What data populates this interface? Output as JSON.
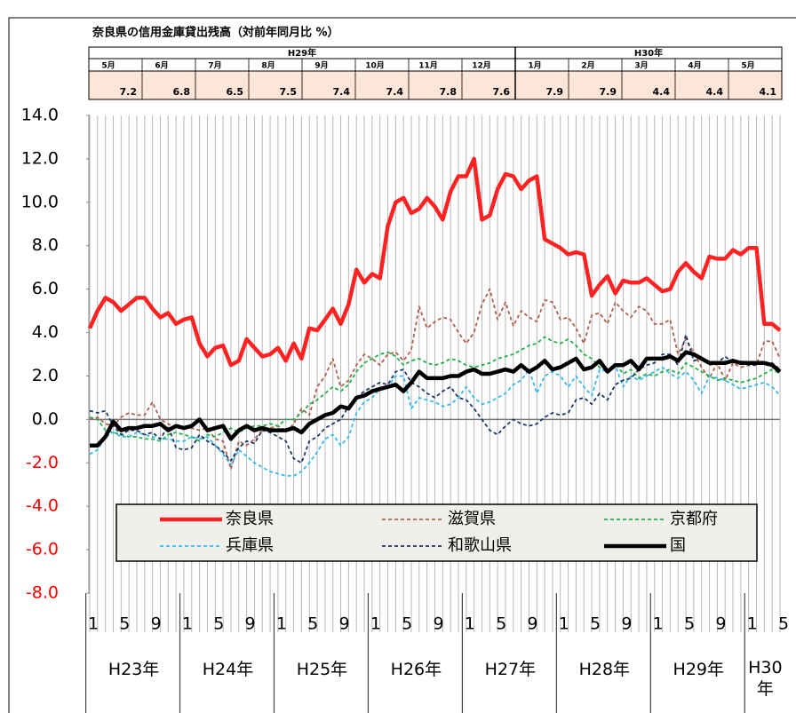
{
  "chart_data": {
    "type": "line",
    "title": "奈良県の信用金庫貸出残高（対前年同月比 %）",
    "categories": [
      "1",
      null,
      null,
      null,
      "5",
      null,
      null,
      null,
      "9",
      null,
      null,
      null,
      "1",
      null,
      null,
      null,
      "5",
      null,
      null,
      null,
      "9",
      null,
      null,
      null,
      "1",
      null,
      null,
      null,
      "5",
      null,
      null,
      null,
      "9",
      null,
      null,
      null,
      "1",
      null,
      null,
      null,
      "5",
      null,
      null,
      null,
      "9",
      null,
      null,
      null,
      "1",
      null,
      null,
      null,
      "5",
      null,
      null,
      null,
      "9",
      null,
      null,
      null,
      "1",
      null,
      null,
      null,
      "5",
      null,
      null,
      null,
      "9",
      null,
      null,
      null,
      "1",
      null,
      null,
      null,
      "5",
      null,
      null,
      null,
      "9",
      null,
      null,
      null,
      "1",
      null,
      null,
      null,
      "5"
    ],
    "year_labels": [
      "H23年",
      "H24年",
      "H25年",
      "H26年",
      "H27年",
      "H28年",
      "H29年",
      "H30年"
    ],
    "ylim": [
      -8,
      14
    ],
    "yticks": [
      {
        "value": 14,
        "label": "14.0"
      },
      {
        "value": 12,
        "label": "12.0"
      },
      {
        "value": 10,
        "label": "10.0"
      },
      {
        "value": 8,
        "label": "8.0"
      },
      {
        "value": 6,
        "label": "6.0"
      },
      {
        "value": 4,
        "label": "4.0"
      },
      {
        "value": 2,
        "label": "2.0"
      },
      {
        "value": 0,
        "label": "0.0"
      },
      {
        "value": -2,
        "label": "-2.0"
      },
      {
        "value": -4,
        "label": "-4.0"
      },
      {
        "value": -6,
        "label": "-6.0"
      },
      {
        "value": -8,
        "label": "-8.0"
      }
    ],
    "negative_tick_color": "#ff0000",
    "grid": true,
    "zero_line": true,
    "legend": "bottom",
    "series": [
      {
        "name": "奈良県",
        "color": "#ff2222",
        "dash": false,
        "line_width": 4.5,
        "values": [
          4.2,
          5.0,
          5.6,
          5.4,
          5.0,
          5.3,
          5.6,
          5.6,
          5.1,
          4.7,
          4.9,
          4.4,
          4.6,
          4.7,
          3.5,
          2.9,
          3.3,
          3.4,
          2.5,
          2.7,
          3.7,
          3.3,
          2.9,
          3.0,
          3.3,
          2.7,
          3.5,
          2.8,
          4.2,
          4.1,
          4.6,
          5.1,
          4.4,
          5.3,
          6.9,
          6.3,
          6.7,
          6.5,
          8.9,
          10.0,
          10.2,
          9.5,
          9.7,
          10.2,
          9.8,
          9.2,
          10.5,
          11.2,
          11.2,
          12.0,
          9.2,
          9.4,
          10.6,
          11.3,
          11.2,
          10.6,
          11.0,
          11.2,
          8.3,
          8.1,
          7.9,
          7.6,
          7.7,
          7.6,
          5.7,
          6.2,
          6.6,
          5.8,
          6.4,
          6.3,
          6.3,
          6.5,
          6.2,
          5.9,
          6.0,
          6.8,
          7.2,
          6.8,
          6.5,
          7.5,
          7.4,
          7.4,
          7.8,
          7.6,
          7.9,
          7.9,
          4.4,
          4.4,
          4.1
        ]
      },
      {
        "name": "滋賀県",
        "color": "#b0604c",
        "dash": true,
        "line_width": 1.8,
        "values": [
          0.0,
          0.1,
          -0.2,
          -0.3,
          0.1,
          0.3,
          0.2,
          0.2,
          0.8,
          0.0,
          -0.2,
          -0.4,
          -0.3,
          -0.4,
          -0.5,
          -0.4,
          -0.9,
          -1.0,
          -2.3,
          -1.0,
          -1.2,
          -0.9,
          -0.5,
          -0.4,
          -0.3,
          -0.6,
          -0.2,
          0.5,
          0.2,
          1.5,
          2.0,
          2.8,
          1.5,
          1.8,
          2.5,
          3.0,
          2.8,
          2.5,
          3.0,
          3.1,
          2.7,
          3.2,
          5.2,
          4.2,
          4.5,
          4.7,
          4.6,
          4.0,
          3.5,
          4.0,
          5.3,
          6.0,
          4.6,
          5.4,
          4.3,
          5.0,
          4.7,
          4.5,
          5.5,
          5.4,
          4.6,
          4.7,
          4.2,
          3.5,
          4.8,
          4.9,
          4.4,
          5.4,
          5.0,
          4.7,
          5.2,
          5.0,
          4.4,
          4.4,
          4.6,
          3.0,
          3.7,
          3.1,
          2.4,
          1.9,
          2.6,
          1.8,
          2.6,
          2.4,
          2.5,
          2.5,
          3.6,
          3.6,
          2.8
        ]
      },
      {
        "name": "京都府",
        "color": "#22b04a",
        "dash": true,
        "line_width": 1.8,
        "values": [
          0.1,
          0.0,
          -0.5,
          -0.6,
          -0.7,
          -0.8,
          -0.8,
          -0.9,
          -0.9,
          -1.0,
          -0.7,
          -0.6,
          -0.7,
          -0.8,
          -1.0,
          -0.7,
          -0.8,
          -0.6,
          -0.4,
          -0.6,
          -0.4,
          -0.3,
          -0.3,
          -0.2,
          -0.3,
          0.0,
          0.0,
          0.3,
          0.7,
          0.9,
          1.2,
          1.5,
          1.3,
          1.6,
          2.2,
          2.6,
          2.8,
          3.0,
          3.1,
          2.9,
          2.5,
          2.7,
          2.8,
          2.6,
          2.5,
          2.6,
          2.8,
          2.7,
          2.5,
          2.4,
          2.5,
          2.6,
          2.8,
          2.9,
          3.0,
          3.2,
          3.4,
          3.5,
          3.8,
          3.6,
          3.5,
          3.7,
          3.4,
          3.0,
          2.8,
          2.4,
          2.2,
          2.6,
          2.1,
          2.3,
          1.9,
          2.1,
          2.0,
          2.2,
          2.3,
          2.1,
          2.6,
          2.4,
          2.2,
          2.0,
          1.8,
          1.9,
          1.8,
          1.7,
          1.8,
          1.9,
          2.1,
          2.3,
          2.1
        ]
      },
      {
        "name": "兵庫県",
        "color": "#33bbf0",
        "dash": true,
        "line_width": 1.8,
        "values": [
          -1.6,
          -1.4,
          -0.8,
          -0.6,
          -0.8,
          -0.8,
          -0.6,
          -0.7,
          -0.8,
          -0.9,
          -0.9,
          -1.0,
          -1.0,
          -0.8,
          -0.9,
          -0.8,
          -1.2,
          -1.6,
          -2.1,
          -1.4,
          -1.7,
          -2.0,
          -2.2,
          -2.4,
          -2.5,
          -2.6,
          -2.6,
          -2.4,
          -2.0,
          -1.5,
          -0.9,
          -0.7,
          -1.2,
          -0.8,
          0.3,
          0.8,
          1.0,
          1.4,
          1.5,
          2.0,
          2.0,
          0.5,
          1.0,
          0.9,
          0.8,
          0.6,
          0.7,
          1.0,
          1.5,
          1.0,
          0.7,
          0.8,
          1.0,
          1.2,
          1.6,
          1.8,
          2.3,
          1.2,
          2.0,
          2.2,
          2.0,
          1.5,
          2.0,
          1.5,
          1.1,
          2.3,
          2.2,
          2.5,
          1.5,
          2.0,
          1.8,
          2.0,
          2.2,
          2.4,
          2.1,
          1.9,
          2.2,
          1.8,
          1.2,
          2.0,
          1.9,
          1.8,
          1.6,
          1.4,
          1.5,
          1.6,
          1.7,
          1.5,
          1.1
        ]
      },
      {
        "name": "和歌山県",
        "color": "#1f3668",
        "dash": true,
        "line_width": 1.8,
        "values": [
          0.4,
          0.3,
          0.4,
          -0.3,
          -0.7,
          -0.5,
          -0.5,
          -0.7,
          -0.6,
          -0.9,
          -0.3,
          -1.3,
          -1.4,
          -1.3,
          -0.7,
          -1.0,
          -1.2,
          -1.5,
          -1.9,
          -1.3,
          -1.0,
          -1.1,
          -0.5,
          -0.6,
          -0.8,
          -1.0,
          -1.8,
          -2.0,
          -1.0,
          -0.8,
          -0.4,
          -0.2,
          0.0,
          0.6,
          1.0,
          1.3,
          1.5,
          1.7,
          1.6,
          2.2,
          2.3,
          1.7,
          1.5,
          1.2,
          1.0,
          1.3,
          1.5,
          1.0,
          0.9,
          0.5,
          0.0,
          -0.5,
          -0.7,
          -0.3,
          0.0,
          -0.2,
          -0.3,
          -0.2,
          0.1,
          0.3,
          0.2,
          0.3,
          0.9,
          1.0,
          0.7,
          1.2,
          0.9,
          1.6,
          1.8,
          1.9,
          2.3,
          2.5,
          2.6,
          3.0,
          3.0,
          2.5,
          3.9,
          2.7,
          2.8,
          2.5,
          2.6,
          2.9,
          2.6,
          2.7,
          2.5,
          2.5,
          2.6,
          2.6,
          2.3
        ]
      },
      {
        "name": "国",
        "color": "#000000",
        "dash": false,
        "line_width": 4.5,
        "values": [
          -1.2,
          -1.2,
          -0.8,
          -0.1,
          -0.5,
          -0.4,
          -0.4,
          -0.3,
          -0.3,
          -0.2,
          -0.5,
          -0.3,
          -0.4,
          -0.3,
          0.0,
          -0.5,
          -0.4,
          -0.3,
          -0.9,
          -0.5,
          -0.3,
          -0.5,
          -0.4,
          -0.5,
          -0.5,
          -0.5,
          -0.4,
          -0.6,
          -0.2,
          0.0,
          0.2,
          0.3,
          0.6,
          0.5,
          1.0,
          1.1,
          1.3,
          1.4,
          1.5,
          1.6,
          1.3,
          1.7,
          2.2,
          1.9,
          1.9,
          1.9,
          2.0,
          2.0,
          2.2,
          2.3,
          2.1,
          2.1,
          2.2,
          2.3,
          2.2,
          2.5,
          2.2,
          2.4,
          2.7,
          2.3,
          2.4,
          2.6,
          2.8,
          2.3,
          2.4,
          2.7,
          2.2,
          2.5,
          2.5,
          2.7,
          2.3,
          2.8,
          2.8,
          2.8,
          2.9,
          2.7,
          3.1,
          3.0,
          2.8,
          2.6,
          2.6,
          2.6,
          2.7,
          2.6,
          2.6,
          2.6,
          2.6,
          2.5,
          2.2
        ]
      }
    ]
  },
  "table": {
    "eras": [
      "H29年",
      "H30年"
    ],
    "months": [
      "5月",
      "6月",
      "7月",
      "8月",
      "9月",
      "10月",
      "11月",
      "12月",
      "1月",
      "2月",
      "3月",
      "4月",
      "5月"
    ],
    "values": [
      7.2,
      6.8,
      6.5,
      7.5,
      7.4,
      7.4,
      7.8,
      7.6,
      7.9,
      7.9,
      4.4,
      4.4,
      4.1
    ]
  }
}
